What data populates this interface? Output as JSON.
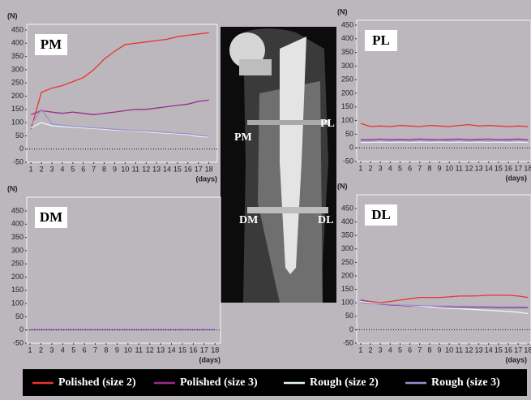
{
  "chart_data": [
    {
      "type": "line",
      "title": "PM",
      "y_label": "(N)",
      "x_label": "(days)",
      "ylim": [
        -50,
        450
      ],
      "yticks": [
        -50,
        0,
        50,
        100,
        150,
        200,
        250,
        300,
        350,
        400,
        450
      ],
      "xlim": [
        0.6,
        18.8
      ],
      "xticks": [
        1,
        2,
        3,
        4,
        5,
        6,
        7,
        8,
        9,
        10,
        11,
        12,
        13,
        14,
        15,
        16,
        17,
        18
      ],
      "x": [
        1,
        2,
        3,
        4,
        5,
        6,
        7,
        8,
        9,
        10,
        11,
        12,
        13,
        14,
        15,
        16,
        17,
        18
      ],
      "series": [
        {
          "name": "Polished (size 2)",
          "color": "#e8352a",
          "values": [
            75,
            215,
            230,
            240,
            255,
            270,
            300,
            340,
            370,
            395,
            400,
            405,
            410,
            415,
            425,
            430,
            435,
            440
          ]
        },
        {
          "name": "Polished (size 3)",
          "color": "#9b2a8f",
          "values": [
            130,
            145,
            140,
            135,
            140,
            135,
            130,
            135,
            140,
            145,
            150,
            150,
            155,
            160,
            165,
            170,
            180,
            185
          ]
        },
        {
          "name": "Rough (size 2)",
          "color": "#e6f6f2",
          "values": [
            80,
            100,
            88,
            85,
            82,
            80,
            78,
            75,
            72,
            70,
            68,
            65,
            62,
            60,
            58,
            55,
            48,
            45
          ]
        },
        {
          "name": "Rough (size 3)",
          "color": "#9c8fd0",
          "values": [
            90,
            150,
            95,
            90,
            86,
            83,
            80,
            78,
            75,
            72,
            70,
            68,
            65,
            63,
            60,
            58,
            52,
            48
          ]
        }
      ]
    },
    {
      "type": "line",
      "title": "PL",
      "y_label": "(N)",
      "x_label": "(days)",
      "ylim": [
        -50,
        450
      ],
      "yticks": [
        -50,
        0,
        50,
        100,
        150,
        200,
        250,
        300,
        350,
        400,
        450
      ],
      "xlim": [
        0.6,
        18.3
      ],
      "xticks": [
        1,
        2,
        3,
        4,
        5,
        6,
        7,
        8,
        9,
        10,
        11,
        12,
        13,
        14,
        15,
        16,
        17,
        18
      ],
      "x": [
        1,
        2,
        3,
        4,
        5,
        6,
        7,
        8,
        9,
        10,
        11,
        12,
        13,
        14,
        15,
        16,
        17,
        18
      ],
      "series": [
        {
          "name": "Polished (size 2)",
          "color": "#e8352a",
          "values": [
            90,
            78,
            80,
            78,
            82,
            80,
            78,
            82,
            80,
            78,
            82,
            85,
            80,
            82,
            80,
            78,
            80,
            78
          ]
        },
        {
          "name": "Polished (size 3)",
          "color": "#9b2a8f",
          "values": [
            30,
            30,
            32,
            30,
            31,
            30,
            32,
            31,
            30,
            31,
            32,
            30,
            31,
            32,
            30,
            31,
            32,
            30
          ]
        },
        {
          "name": "Rough (size 2)",
          "color": "#e6f6f2",
          "values": [
            20,
            20,
            21,
            20,
            21,
            20,
            21,
            20,
            21,
            20,
            21,
            20,
            21,
            20,
            21,
            20,
            21,
            20
          ]
        },
        {
          "name": "Rough (size 3)",
          "color": "#9c8fd0",
          "values": [
            25,
            25,
            26,
            25,
            26,
            25,
            26,
            25,
            26,
            25,
            26,
            25,
            26,
            25,
            26,
            25,
            26,
            25
          ]
        }
      ]
    },
    {
      "type": "line",
      "title": "DM",
      "y_label": "(N)",
      "x_label": "(days)",
      "ylim": [
        -50,
        450
      ],
      "yticks": [
        -50,
        0,
        50,
        100,
        150,
        200,
        250,
        300,
        350,
        400,
        450
      ],
      "xlim": [
        0.7,
        18.5
      ],
      "xticks": [
        1,
        2,
        3,
        4,
        5,
        6,
        7,
        8,
        9,
        10,
        11,
        12,
        13,
        14,
        15,
        16,
        17,
        18
      ],
      "x": [
        1,
        2,
        3,
        4,
        5,
        6,
        7,
        8,
        9,
        10,
        11,
        12,
        13,
        14,
        15,
        16,
        17,
        18
      ],
      "series": [
        {
          "name": "Polished (size 2)",
          "color": "#e8352a",
          "values": [
            3,
            4,
            3,
            4,
            3,
            4,
            3,
            4,
            3,
            4,
            3,
            4,
            3,
            4,
            3,
            4,
            3,
            4
          ]
        },
        {
          "name": "Polished (size 3)",
          "color": "#9b2a8f",
          "values": [
            2,
            3,
            2,
            3,
            2,
            3,
            2,
            3,
            2,
            3,
            2,
            3,
            2,
            3,
            2,
            3,
            2,
            3
          ]
        },
        {
          "name": "Rough (size 2)",
          "color": "#e6f6f2",
          "values": [
            5,
            6,
            5,
            6,
            5,
            6,
            5,
            6,
            5,
            6,
            5,
            6,
            5,
            6,
            5,
            6,
            5,
            6
          ]
        },
        {
          "name": "Rough (size 3)",
          "color": "#9c8fd0",
          "values": [
            4,
            5,
            4,
            5,
            4,
            5,
            4,
            5,
            4,
            5,
            4,
            5,
            4,
            5,
            4,
            5,
            4,
            5
          ]
        }
      ]
    },
    {
      "type": "line",
      "title": "DL",
      "y_label": "(N)",
      "x_label": "(days)",
      "ylim": [
        -50,
        450
      ],
      "yticks": [
        -50,
        0,
        50,
        100,
        150,
        200,
        250,
        300,
        350,
        400,
        450
      ],
      "xlim": [
        0.6,
        18.3
      ],
      "xticks": [
        1,
        2,
        3,
        4,
        5,
        6,
        7,
        8,
        9,
        10,
        11,
        12,
        13,
        14,
        15,
        16,
        17,
        18
      ],
      "x": [
        1,
        2,
        3,
        4,
        5,
        6,
        7,
        8,
        9,
        10,
        11,
        12,
        13,
        14,
        15,
        16,
        17,
        18
      ],
      "series": [
        {
          "name": "Polished (size 2)",
          "color": "#e8352a",
          "values": [
            110,
            105,
            100,
            105,
            110,
            115,
            120,
            120,
            120,
            122,
            125,
            125,
            126,
            128,
            128,
            128,
            125,
            120
          ]
        },
        {
          "name": "Polished (size 3)",
          "color": "#9b2a8f",
          "values": [
            110,
            100,
            95,
            92,
            90,
            88,
            87,
            86,
            85,
            85,
            84,
            84,
            83,
            83,
            82,
            82,
            82,
            82
          ]
        },
        {
          "name": "Rough (size 2)",
          "color": "#e6f6f2",
          "values": [
            105,
            100,
            97,
            95,
            92,
            90,
            88,
            85,
            82,
            80,
            78,
            76,
            74,
            72,
            70,
            68,
            65,
            60
          ]
        },
        {
          "name": "Rough (size 3)",
          "color": "#9c8fd0",
          "values": [
            100,
            98,
            96,
            94,
            92,
            91,
            90,
            89,
            88,
            88,
            87,
            87,
            86,
            86,
            85,
            85,
            85,
            85
          ]
        }
      ]
    }
  ],
  "image_labels": [
    "PM",
    "PL",
    "DM",
    "DL"
  ]
}
